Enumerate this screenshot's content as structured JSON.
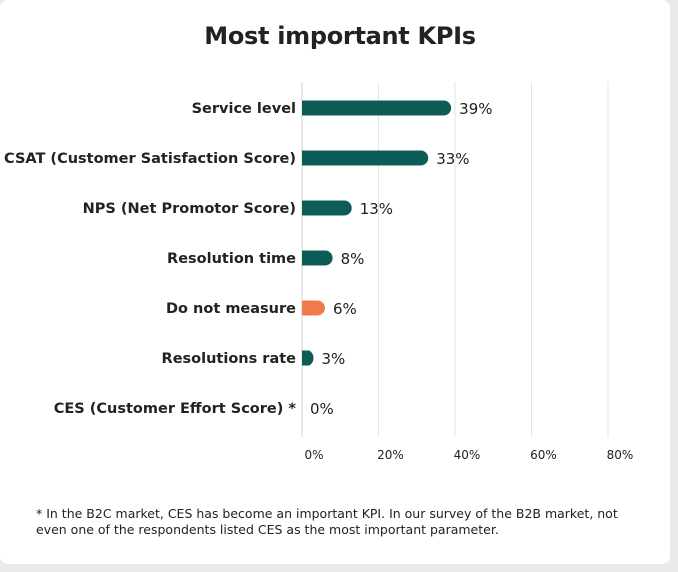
{
  "card": {
    "title": "Most important KPIs",
    "footnote": "* In the B2C market, CES has become an important KPI. In our survey of the B2B market, not even one of the respondents listed CES as the most important parameter."
  },
  "colors": {
    "primary_bar": "#0d5c55",
    "highlight_bar": "#f07a4c",
    "grid": "#e6e6e6"
  },
  "chart_data": {
    "type": "bar",
    "orientation": "horizontal",
    "title": "Most important KPIs",
    "categories": [
      "Service level",
      "CSAT (Customer Satisfaction Score)",
      "NPS (Net Promotor Score)",
      "Resolution time",
      "Do not measure",
      "Resolutions rate",
      "CES (Customer Effort Score) *"
    ],
    "values": [
      39,
      33,
      13,
      8,
      6,
      3,
      0
    ],
    "value_labels": [
      "39%",
      "33%",
      "13%",
      "8%",
      "6%",
      "3%",
      "0%"
    ],
    "highlight_index": 4,
    "xlim": [
      0,
      80
    ],
    "xticks": [
      0,
      20,
      40,
      60,
      80
    ],
    "xtick_labels": [
      "0%",
      "20%",
      "40%",
      "60%",
      "80%"
    ],
    "xlabel": "",
    "ylabel": "",
    "grid": true,
    "legend": "none"
  }
}
